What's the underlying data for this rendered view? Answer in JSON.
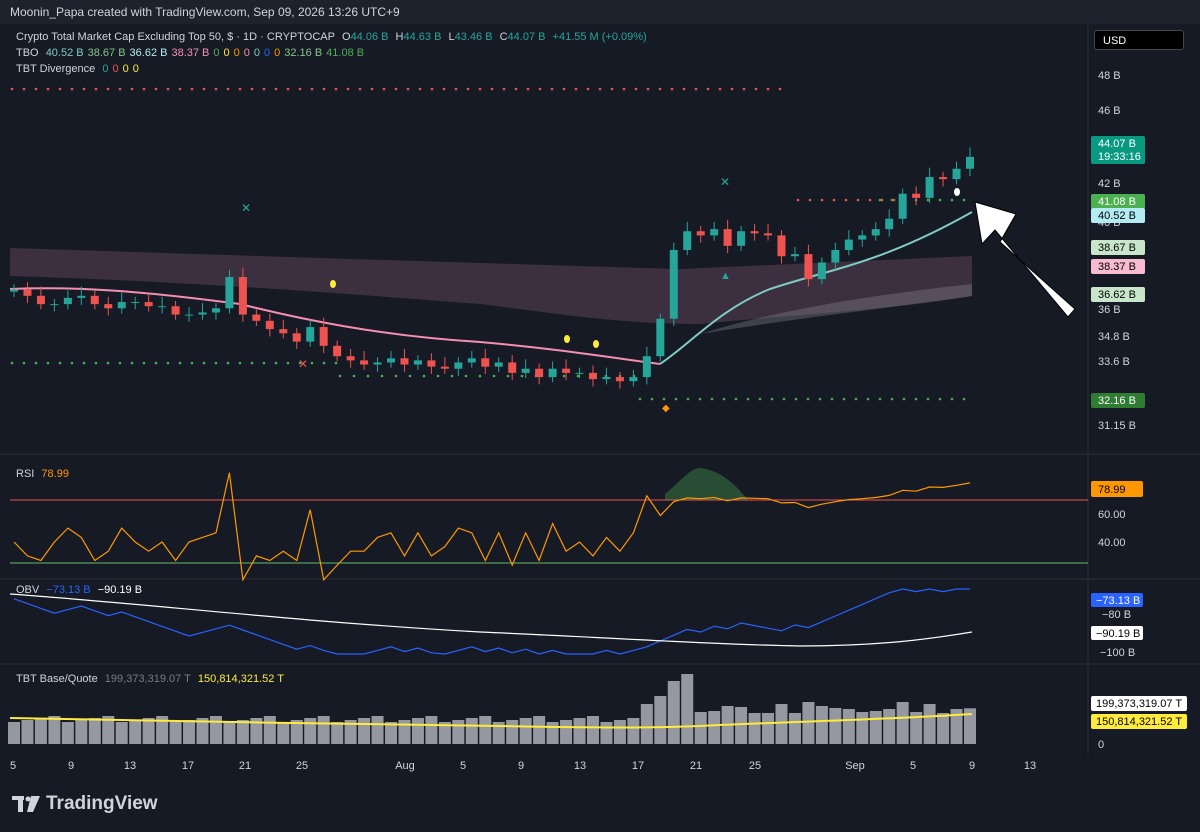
{
  "header": {
    "text": "Moonin_Papa created with TradingView.com, Sep 09, 2026 13:26 UTC+9"
  },
  "legend": {
    "title": "Crypto Total Market Cap Excluding Top 50, $ · 1D · CRYPTOCAP",
    "o_label": "O",
    "o": "44.06 B",
    "h_label": "H",
    "h": "44.63 B",
    "l_label": "L",
    "l": "43.46 B",
    "c_label": "C",
    "c": "44.07 B",
    "change": "+41.55 M (+0.09%)",
    "tbo_label": "TBO",
    "tbo_values": [
      "40.52 B",
      "38.67 B",
      "36.62 B",
      "38.37 B",
      "0",
      "0",
      "0",
      "0",
      "0",
      "0",
      "0",
      "32.16 B",
      "41.08 B"
    ],
    "div_label": "TBT Divergence",
    "div_values": [
      "0",
      "0",
      "0",
      "0"
    ]
  },
  "currency": "USD",
  "price_axis": {
    "ticks": [
      "48 B",
      "46 B",
      "42 B",
      "40 B",
      "36 B",
      "34.8 B",
      "33.6 B",
      "31.15 B"
    ],
    "badges": [
      {
        "text": "44.07 B",
        "sub": "19:33:16",
        "color": "#089981"
      },
      {
        "text": "41.08 B",
        "color": "#4caf50"
      },
      {
        "text": "40.52 B",
        "color": "#b2ebf2"
      },
      {
        "text": "38.67 B",
        "color": "#c8e6c9"
      },
      {
        "text": "38.37 B",
        "color": "#f8bbd0"
      },
      {
        "text": "36.62 B",
        "color": "#c8e6c9"
      },
      {
        "text": "32.16 B",
        "color": "#2e7d32"
      }
    ]
  },
  "rsi": {
    "label": "RSI",
    "value": "78.99",
    "ticks": [
      "60.00",
      "40.00"
    ],
    "color": "#ff9800"
  },
  "obv": {
    "label": "OBV",
    "value1": "−73.13 B",
    "value2": "−90.19 B",
    "ticks": [
      "−80 B",
      "−100 B"
    ]
  },
  "base_quote": {
    "label": "TBT Base/Quote",
    "value1": "199,373,319.07 T",
    "value2": "150,814,321.52 T",
    "ticks": [
      "0"
    ]
  },
  "time_axis": [
    "5",
    "9",
    "13",
    "17",
    "21",
    "25",
    "Aug",
    "5",
    "9",
    "13",
    "17",
    "21",
    "25",
    "Sep",
    "5",
    "9",
    "13"
  ],
  "logo_text": "TradingView",
  "chart_data": {
    "type": "candlestick",
    "date_range": [
      "Jul 5, 2026",
      "Sep 9, 2026"
    ],
    "ohlc_last": {
      "open": 44.06,
      "high": 44.63,
      "low": 43.46,
      "close": 44.07
    },
    "closes": [
      37.7,
      37.4,
      37.0,
      37.0,
      37.3,
      37.4,
      37.0,
      36.8,
      37.1,
      37.1,
      36.9,
      36.9,
      36.5,
      36.5,
      36.6,
      36.8,
      38.3,
      36.5,
      36.2,
      35.8,
      35.6,
      35.2,
      35.9,
      35.0,
      34.5,
      34.3,
      34.1,
      34.2,
      34.4,
      34.1,
      34.3,
      34.0,
      33.9,
      34.2,
      34.4,
      34.0,
      34.2,
      33.7,
      33.9,
      33.5,
      33.9,
      33.7,
      33.7,
      33.4,
      33.5,
      33.3,
      33.5,
      34.5,
      36.3,
      39.6,
      40.5,
      40.3,
      40.6,
      39.8,
      40.5,
      40.4,
      40.3,
      39.3,
      39.4,
      38.2,
      39.0,
      39.6,
      40.1,
      40.3,
      40.6,
      41.1,
      42.3,
      42.1,
      43.1,
      43.0,
      43.5,
      44.07
    ]
  }
}
